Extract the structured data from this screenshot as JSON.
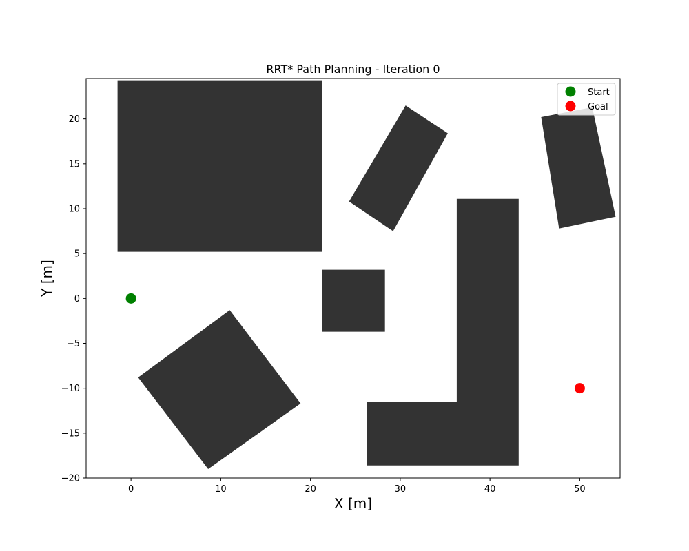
{
  "chart_data": {
    "type": "scatter",
    "title": "RRT* Path Planning - Iteration 0",
    "xlabel": "X [m]",
    "ylabel": "Y [m]",
    "xlim": [
      -5,
      54.5
    ],
    "ylim": [
      -20,
      24.5
    ],
    "xticks": [
      0,
      10,
      20,
      30,
      40,
      50
    ],
    "yticks": [
      -20,
      -15,
      -10,
      -5,
      0,
      5,
      10,
      15,
      20
    ],
    "grid": false,
    "legend_position": "top-right",
    "series": [
      {
        "name": "Start",
        "color": "#008000",
        "points": [
          [
            0,
            0
          ]
        ]
      },
      {
        "name": "Goal",
        "color": "#ff0000",
        "points": [
          [
            50,
            -10
          ]
        ]
      }
    ],
    "obstacles": {
      "color": "#333333",
      "polygons": [
        [
          [
            -1.5,
            5.2
          ],
          [
            21.3,
            5.2
          ],
          [
            21.3,
            24.3
          ],
          [
            -1.5,
            24.3
          ]
        ],
        [
          [
            21.3,
            -3.7
          ],
          [
            28.3,
            -3.7
          ],
          [
            28.3,
            3.2
          ],
          [
            21.3,
            3.2
          ]
        ],
        [
          [
            36.3,
            -11.5
          ],
          [
            43.2,
            -11.5
          ],
          [
            43.2,
            11.1
          ],
          [
            36.3,
            11.1
          ]
        ],
        [
          [
            26.3,
            -18.6
          ],
          [
            43.2,
            -18.6
          ],
          [
            43.2,
            -11.5
          ],
          [
            26.3,
            -11.5
          ]
        ],
        [
          [
            30.6,
            21.5
          ],
          [
            35.3,
            18.4
          ],
          [
            29.2,
            7.5
          ],
          [
            24.3,
            10.8
          ]
        ],
        [
          [
            45.7,
            20.2
          ],
          [
            51.4,
            21.3
          ],
          [
            54.0,
            9.1
          ],
          [
            47.7,
            7.8
          ]
        ],
        [
          [
            11.0,
            -1.3
          ],
          [
            18.9,
            -11.7
          ],
          [
            8.6,
            -19.0
          ],
          [
            0.8,
            -8.8
          ]
        ]
      ]
    }
  }
}
